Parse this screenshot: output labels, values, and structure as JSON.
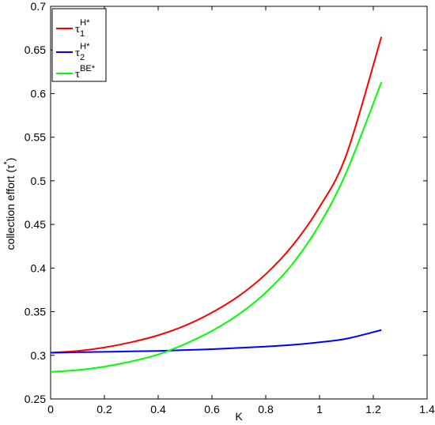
{
  "chart_data": {
    "type": "line",
    "xlabel": "K",
    "ylabel_main": "collection effort (τ",
    "ylabel_sup": "*",
    "ylabel_end": ")",
    "xlim": [
      0,
      1.4
    ],
    "ylim": [
      0.25,
      0.7
    ],
    "xticks": [
      0,
      0.2,
      0.4,
      0.6,
      0.8,
      1,
      1.2,
      1.4
    ],
    "xtick_labels": [
      "0",
      "0.2",
      "0.4",
      "0.6",
      "0.8",
      "1",
      "1.2",
      "1.4"
    ],
    "yticks": [
      0.25,
      0.3,
      0.35,
      0.4,
      0.45,
      0.5,
      0.55,
      0.6,
      0.65,
      0.7
    ],
    "ytick_labels": [
      "0.25",
      "0.3",
      "0.35",
      "0.4",
      "0.45",
      "0.5",
      "0.55",
      "0.6",
      "0.65",
      "0.7"
    ],
    "grid": false,
    "legend_position": "top-left",
    "x": [
      0,
      0.1,
      0.2,
      0.3,
      0.4,
      0.5,
      0.6,
      0.7,
      0.8,
      0.9,
      1.0,
      1.1,
      1.23
    ],
    "series": [
      {
        "name_base": "τ",
        "name_sub": "1",
        "name_sup": "H*",
        "color": "#ff0000",
        "values": [
          0.303,
          0.305,
          0.309,
          0.315,
          0.323,
          0.334,
          0.349,
          0.368,
          0.393,
          0.426,
          0.47,
          0.53,
          0.665
        ]
      },
      {
        "name_base": "τ",
        "name_sub": "2",
        "name_sup": "H*",
        "color": "#0000ff",
        "values": [
          0.303,
          0.3035,
          0.304,
          0.3045,
          0.305,
          0.306,
          0.307,
          0.3085,
          0.31,
          0.312,
          0.315,
          0.319,
          0.329
        ]
      },
      {
        "name_base": "τ",
        "name_sub": "",
        "name_sup": "BE*",
        "color": "#00ff00",
        "values": [
          0.281,
          0.283,
          0.287,
          0.293,
          0.301,
          0.313,
          0.328,
          0.347,
          0.372,
          0.405,
          0.45,
          0.51,
          0.613
        ]
      }
    ]
  }
}
